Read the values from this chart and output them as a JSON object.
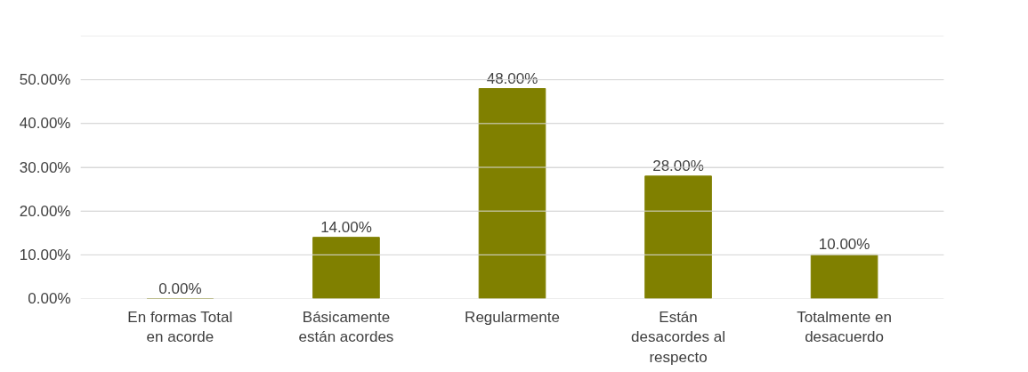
{
  "chart_data": {
    "type": "bar",
    "categories": [
      "En formas Total\nen acorde",
      "Básicamente\nestán acordes",
      "Regularmente",
      "Están\ndesacordes al\nrespecto",
      "Totalmente en\ndesacuerdo"
    ],
    "values": [
      0,
      14,
      48,
      28,
      10
    ],
    "color": "#808000",
    "value_labels": [
      "0.00%",
      "14.00%",
      "48.00%",
      "28.00%",
      "10.00%"
    ],
    "ylim": [
      0,
      60
    ],
    "yticks": [
      {
        "value": 0,
        "label": "0.00%"
      },
      {
        "value": 10,
        "label": "10.00%"
      },
      {
        "value": 20,
        "label": "20.00%"
      },
      {
        "value": 30,
        "label": "30.00%"
      },
      {
        "value": 40,
        "label": "40.00%"
      },
      {
        "value": 50,
        "label": "50.00%"
      },
      {
        "value": 60,
        "label": null
      }
    ],
    "grid": "y"
  }
}
